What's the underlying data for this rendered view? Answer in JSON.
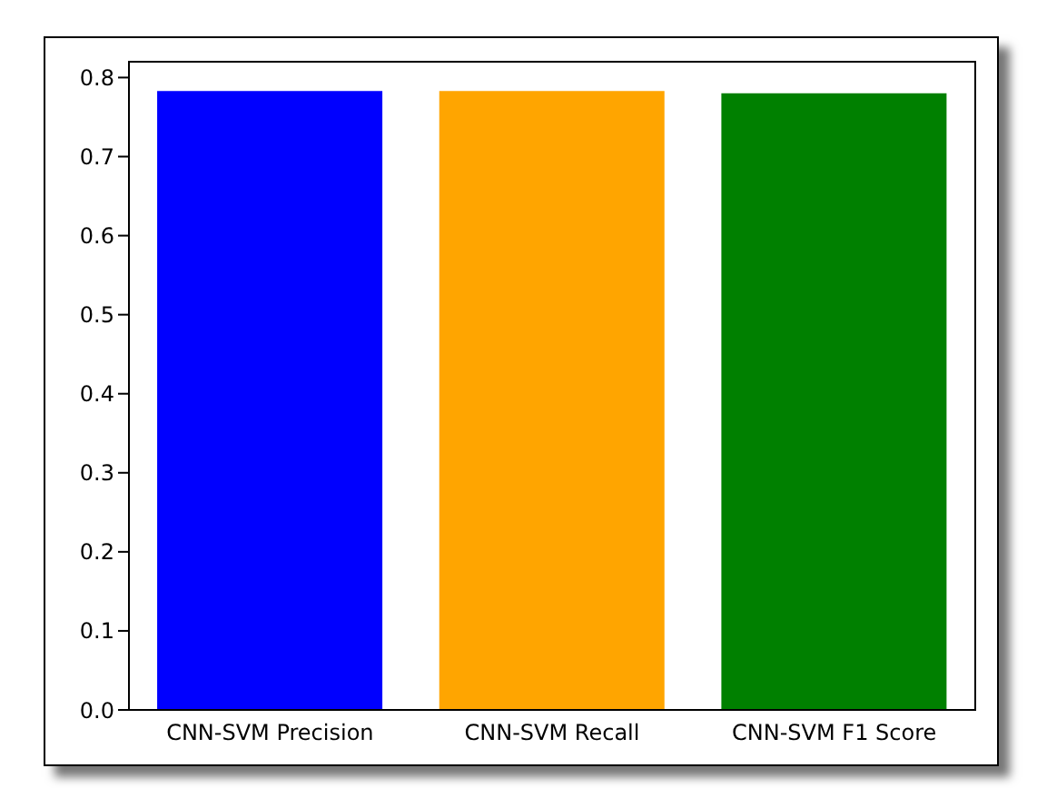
{
  "chart_data": {
    "type": "bar",
    "categories": [
      "CNN-SVM Precision",
      "CNN-SVM Recall",
      "CNN-SVM F1 Score"
    ],
    "values": [
      0.783,
      0.783,
      0.78
    ],
    "colors": [
      "#0000ff",
      "#ffa500",
      "#008000"
    ],
    "ylim": [
      0,
      0.82
    ],
    "yticks": [
      {
        "value": 0,
        "label": "0.0"
      },
      0.1,
      0.2,
      0.3,
      0.4,
      0.5,
      0.6,
      0.7,
      0.8
    ],
    "grid": false
  }
}
